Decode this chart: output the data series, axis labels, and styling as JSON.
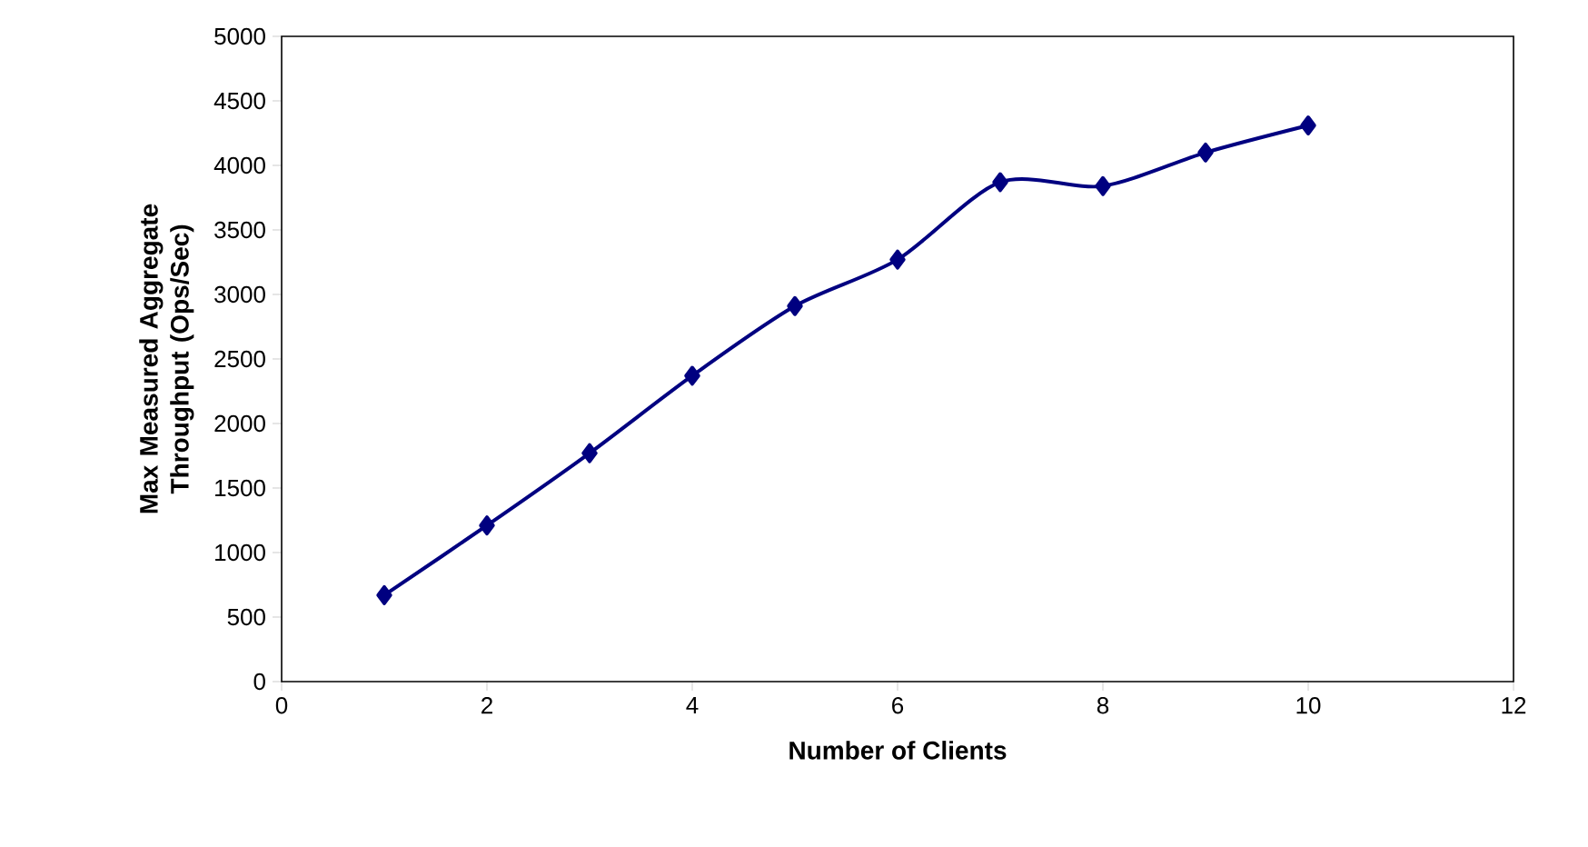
{
  "chart_data": {
    "type": "line",
    "xlabel": "Number of Clients",
    "ylabel": "Max Measured Aggregate Throughput (Ops/Sec)",
    "x": [
      1,
      2,
      3,
      4,
      5,
      6,
      7,
      8,
      9,
      10
    ],
    "series": [
      {
        "color": "#000080",
        "values": [
          670,
          1210,
          1770,
          2370,
          2910,
          3270,
          3870,
          3840,
          4100,
          4310
        ]
      }
    ],
    "xlim": [
      0,
      12
    ],
    "xticks": [
      0,
      2,
      4,
      6,
      8,
      10,
      12
    ],
    "ylim": [
      0,
      5000
    ],
    "yticks": [
      0,
      500,
      1000,
      1500,
      2000,
      2500,
      3000,
      3500,
      4000,
      4500,
      5000
    ],
    "marker": "diamond",
    "line_style": "solid"
  }
}
